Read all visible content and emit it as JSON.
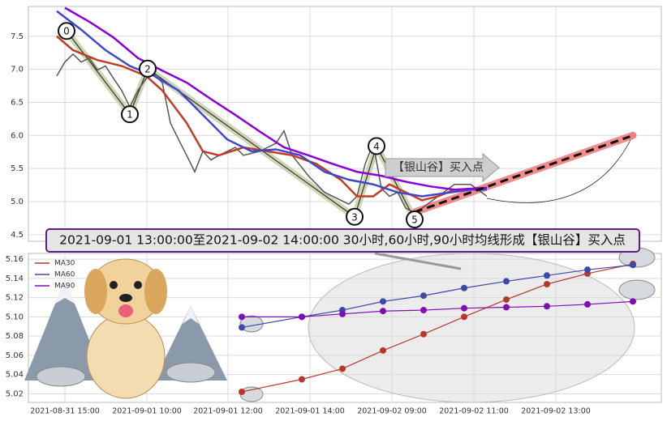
{
  "chart_data": [
    {
      "type": "line",
      "xlim": [
        0,
        78
      ],
      "ylim": [
        4.4,
        7.95
      ],
      "yticks": [
        4.5,
        {
          "value": 5,
          "label": "5.0"
        },
        5.5,
        {
          "value": 6,
          "label": "6.0"
        },
        6.5,
        {
          "value": 7,
          "label": "7.0"
        },
        7.5
      ],
      "grid": true,
      "series": [
        {
          "color": "#555555",
          "width": 1.5,
          "x": [
            3.5,
            4.5,
            5.5,
            6.5,
            7.5,
            8.5,
            9.5,
            10.5,
            11.5,
            12.5,
            13.5,
            14.5,
            15.5,
            16.5,
            17.5,
            18.5,
            19.5,
            20.5,
            21.5,
            22.5,
            23.5,
            24.5,
            25.5,
            26.5,
            28.5,
            30.5,
            31.5,
            32.5,
            34.5,
            36.5,
            38.5,
            39.5,
            40.5,
            41.5,
            42.5,
            43.5,
            44.5,
            45.5,
            46.5,
            47.5,
            48.5,
            50.5,
            52.5,
            54.5,
            56.5
          ],
          "values": [
            6.9,
            7.11,
            7.23,
            7.11,
            7.17,
            6.99,
            7.05,
            6.86,
            6.68,
            6.43,
            6.68,
            6.86,
            6.92,
            6.8,
            6.19,
            5.94,
            5.7,
            5.45,
            5.76,
            5.63,
            5.7,
            5.76,
            5.82,
            5.7,
            5.76,
            5.88,
            6.07,
            5.7,
            5.39,
            5.14,
            5.02,
            4.96,
            5.08,
            5.57,
            5.88,
            5.2,
            5.08,
            5.14,
            4.9,
            4.84,
            4.9,
            5.08,
            5.26,
            5.26,
            5.08
          ]
        },
        {
          "color": "#c23b22",
          "width": 2.5,
          "x": [
            3.5,
            5.5,
            8.5,
            11.5,
            14.5,
            16.5,
            19.5,
            21.5,
            23.5,
            26.5,
            29.5,
            32.5,
            35.5,
            38.5,
            40.5,
            42.5,
            44.5,
            46.5,
            48.5,
            50.5,
            52.5,
            54.5,
            56.5
          ],
          "values": [
            7.5,
            7.29,
            7.14,
            7.05,
            6.9,
            6.68,
            6.19,
            5.76,
            5.7,
            5.82,
            5.76,
            5.7,
            5.57,
            5.33,
            5.08,
            5.08,
            5.26,
            5.14,
            5.02,
            5.08,
            5.18,
            5.18,
            5.18
          ]
        },
        {
          "color": "#3f48cc",
          "width": 2.5,
          "x": [
            3.5,
            6.5,
            9.5,
            12.5,
            15.5,
            18.5,
            21.5,
            24.5,
            27.5,
            30.5,
            33.5,
            36.5,
            39.5,
            42.5,
            45.5,
            48.5,
            51.5,
            54.5,
            56.5
          ],
          "values": [
            7.88,
            7.6,
            7.29,
            7.05,
            6.9,
            6.68,
            6.31,
            5.94,
            5.76,
            5.79,
            5.7,
            5.45,
            5.33,
            5.26,
            5.14,
            5.08,
            5.13,
            5.18,
            5.18
          ]
        },
        {
          "color": "#8b00d4",
          "width": 2.5,
          "x": [
            4.5,
            7.5,
            10.5,
            13.5,
            16.5,
            19.5,
            22.5,
            25.5,
            28.5,
            31.5,
            34.5,
            37.5,
            40.5,
            43.5,
            46.5,
            49.5,
            52.5,
            56.5
          ],
          "values": [
            7.93,
            7.72,
            7.48,
            7.17,
            6.98,
            6.8,
            6.55,
            6.31,
            6.06,
            5.82,
            5.7,
            5.57,
            5.45,
            5.39,
            5.3,
            5.23,
            5.18,
            5.21
          ]
        }
      ],
      "pattern_points": [
        {
          "label": "0",
          "x": 4.7,
          "y": 7.58
        },
        {
          "label": "1",
          "x": 12.5,
          "y": 6.32
        },
        {
          "label": "2",
          "x": 14.7,
          "y": 7.01
        },
        {
          "label": "3",
          "x": 40.2,
          "y": 4.77
        },
        {
          "label": "4",
          "x": 42.9,
          "y": 5.84
        },
        {
          "label": "5",
          "x": 47.6,
          "y": 4.73
        }
      ],
      "trend_line": {
        "x": [
          47.6,
          74.5
        ],
        "y": [
          4.84,
          6.0
        ]
      },
      "annotation": "【银山谷】买入点"
    },
    {
      "type": "line",
      "title": "2021-09-01 13:00:00至2021-09-02 14:00:00 30小时,60小时,90小时均线形成【银山谷】买入点",
      "xlim": [
        0,
        78
      ],
      "ylim": [
        5.011,
        5.166
      ],
      "xticks": [
        {
          "value": 4.5,
          "label": "2021-08-31 15:00"
        },
        {
          "value": 14.6,
          "label": "2021-09-01 10:00"
        },
        {
          "value": 24.6,
          "label": "2021-09-01 12:00"
        },
        {
          "value": 34.7,
          "label": "2021-09-01 14:00"
        },
        {
          "value": 44.8,
          "label": "2021-09-02 09:00"
        },
        {
          "value": 54.9,
          "label": "2021-09-02 11:00"
        },
        {
          "value": 65,
          "label": "2021-09-02 13:00"
        }
      ],
      "yticks": [
        5.02,
        5.04,
        5.06,
        5.08,
        {
          "value": 5.1,
          "label": "5.10"
        },
        5.12,
        5.14,
        5.16
      ],
      "grid": true,
      "legend": "upper left",
      "marker": "o",
      "x": [
        26.3,
        33.7,
        38.7,
        43.7,
        48.7,
        53.7,
        58.9,
        63.9,
        68.9,
        74.5
      ],
      "series": [
        {
          "name": "MA30",
          "color": "#b5382c",
          "values": [
            5.022,
            5.035,
            5.046,
            5.065,
            5.082,
            5.1,
            5.118,
            5.134,
            5.145,
            5.155
          ]
        },
        {
          "name": "MA60",
          "color": "#3f48a8",
          "values": [
            5.089,
            5.1,
            5.107,
            5.116,
            5.122,
            5.13,
            5.137,
            5.143,
            5.149,
            5.154
          ]
        },
        {
          "name": "MA90",
          "color": "#7d0fb5",
          "values": [
            5.1,
            5.1,
            5.103,
            5.106,
            5.107,
            5.109,
            5.11,
            5.111,
            5.113,
            5.116
          ]
        }
      ]
    }
  ]
}
